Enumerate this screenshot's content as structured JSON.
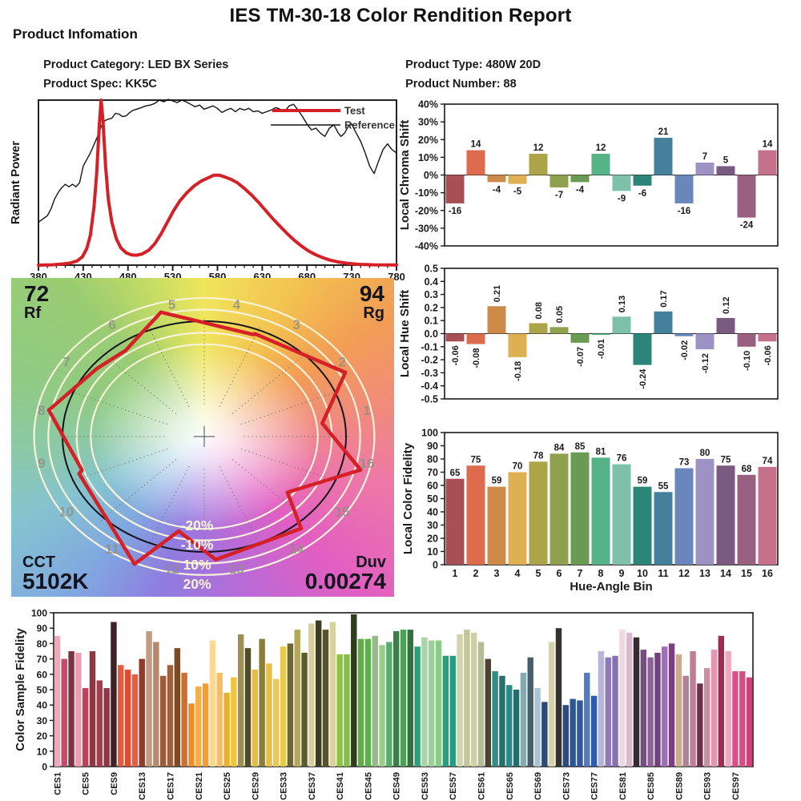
{
  "report": {
    "title": "IES TM-30-18 Color Rendition Report",
    "section_heading": "Product Infomation",
    "fields": {
      "category_label": "Product Category:",
      "category": "LED BX Series",
      "type_label": "Product Type:",
      "type": "480W 20D",
      "spec_label": "Product Spec:",
      "spec": "KK5C",
      "number_label": "Product Number:",
      "number": "88"
    }
  },
  "cvg": {
    "rf_value": "72",
    "rf_label": "Rf",
    "rg_value": "94",
    "rg_label": "Rg",
    "cct_label": "CCT",
    "cct_value": "5102K",
    "duv_label": "Duv",
    "duv_value": "0.00274",
    "ring_labels": [
      "-20%",
      "-10%",
      "10%",
      "20%"
    ],
    "bin_count": 16
  },
  "colors": {
    "test": "#d42026",
    "reference": "#141414",
    "frame": "#1a1a1a",
    "ring_white": "#f8f2d8",
    "bin_palette": [
      "#a84f56",
      "#dd6b4e",
      "#cd8949",
      "#ddb054",
      "#aba449",
      "#90a14d",
      "#6a9b53",
      "#56b287",
      "#7fc0ab",
      "#2b8579",
      "#45809a",
      "#6b86bb",
      "#9d92c4",
      "#7b5a81",
      "#985f80",
      "#c5718c"
    ],
    "ces_palette": [
      "#efa9b8",
      "#c64a6c",
      "#7c3440",
      "#eb9cae",
      "#c04059",
      "#8a3a44",
      "#a83c4c",
      "#933642",
      "#3d2327",
      "#e65a40",
      "#df4a30",
      "#e85c42",
      "#8f3c2e",
      "#c29a80",
      "#b8886c",
      "#9d5c38",
      "#a25f36",
      "#7c4a26",
      "#ca7030",
      "#f08c28",
      "#f6ae48",
      "#f49e30",
      "#fbd894",
      "#f7bd60",
      "#edb02a",
      "#f0c53c",
      "#9e9050",
      "#514c28",
      "#e9bc3e",
      "#8a7e3a",
      "#e7bf48",
      "#ecc757",
      "#e9ca4c",
      "#6c672f",
      "#b4a757",
      "#5d5b2c",
      "#d8cf9c",
      "#3c3c22",
      "#565426",
      "#dad29e",
      "#8ec33c",
      "#7fc04a",
      "#2f3d1f",
      "#63ab46",
      "#5fb04c",
      "#96ba87",
      "#9ccc8c",
      "#58ad6c",
      "#3c7e4a",
      "#4da056",
      "#35713f",
      "#2f9e78",
      "#a6d6a4",
      "#98d096",
      "#8acb8b",
      "#2b9c7c",
      "#279a82",
      "#d2d3a8",
      "#c2c698",
      "#ccd0a6",
      "#b2bc96",
      "#4c4232",
      "#2f8f85",
      "#27706a",
      "#2c8a88",
      "#1e6f70",
      "#87a9b2",
      "#475f6b",
      "#a8c3d6",
      "#2c4a74",
      "#d6d1a8",
      "#34322b",
      "#2b4a82",
      "#2f5596",
      "#32589e",
      "#567abc",
      "#2f5caa",
      "#b6b4d8",
      "#8d7ab8",
      "#8871b0",
      "#eed9df",
      "#d9b9cd",
      "#352b30",
      "#754f80",
      "#8f5f9e",
      "#71427c",
      "#9d6fb6",
      "#7e3c84",
      "#c9ac90",
      "#ae8292",
      "#bf7e94",
      "#703048",
      "#cb8da2",
      "#e596ae",
      "#a02c54",
      "#efa8bc",
      "#da5088",
      "#d84e84",
      "#d0407a"
    ]
  },
  "chart_data": [
    {
      "type": "line",
      "name": "spectral-power-distribution",
      "ylabel": "Radiant Power",
      "x_range": [
        380,
        780
      ],
      "x_ticks": [
        380,
        430,
        480,
        530,
        580,
        630,
        680,
        730,
        780
      ],
      "series": [
        {
          "name": "Test",
          "color": "#d42026",
          "width": 4,
          "points": [
            [
              380,
              0
            ],
            [
              395,
              0.002
            ],
            [
              405,
              0.006
            ],
            [
              415,
              0.012
            ],
            [
              423,
              0.025
            ],
            [
              429,
              0.05
            ],
            [
              434,
              0.1
            ],
            [
              438,
              0.18
            ],
            [
              442,
              0.35
            ],
            [
              445,
              0.55
            ],
            [
              448,
              0.85
            ],
            [
              450,
              1.0
            ],
            [
              452,
              0.88
            ],
            [
              455,
              0.6
            ],
            [
              458,
              0.4
            ],
            [
              462,
              0.26
            ],
            [
              467,
              0.16
            ],
            [
              472,
              0.105
            ],
            [
              478,
              0.075
            ],
            [
              484,
              0.062
            ],
            [
              490,
              0.06
            ],
            [
              496,
              0.068
            ],
            [
              503,
              0.09
            ],
            [
              510,
              0.13
            ],
            [
              517,
              0.19
            ],
            [
              524,
              0.26
            ],
            [
              531,
              0.33
            ],
            [
              538,
              0.39
            ],
            [
              546,
              0.44
            ],
            [
              554,
              0.48
            ],
            [
              562,
              0.51
            ],
            [
              570,
              0.53
            ],
            [
              576,
              0.545
            ],
            [
              582,
              0.545
            ],
            [
              588,
              0.535
            ],
            [
              595,
              0.52
            ],
            [
              602,
              0.5
            ],
            [
              610,
              0.465
            ],
            [
              618,
              0.425
            ],
            [
              626,
              0.38
            ],
            [
              634,
              0.33
            ],
            [
              642,
              0.28
            ],
            [
              650,
              0.235
            ],
            [
              658,
              0.19
            ],
            [
              666,
              0.15
            ],
            [
              674,
              0.115
            ],
            [
              682,
              0.085
            ],
            [
              690,
              0.062
            ],
            [
              698,
              0.044
            ],
            [
              706,
              0.03
            ],
            [
              715,
              0.019
            ],
            [
              725,
              0.011
            ],
            [
              738,
              0.005
            ],
            [
              755,
              0.002
            ],
            [
              780,
              0.001
            ]
          ]
        },
        {
          "name": "Reference",
          "color": "#141414",
          "width": 1.4,
          "points": [
            [
              380,
              0.26
            ],
            [
              385,
              0.28
            ],
            [
              390,
              0.3
            ],
            [
              394,
              0.34
            ],
            [
              398,
              0.4
            ],
            [
              402,
              0.44
            ],
            [
              406,
              0.47
            ],
            [
              410,
              0.49
            ],
            [
              414,
              0.475
            ],
            [
              418,
              0.49
            ],
            [
              422,
              0.475
            ],
            [
              426,
              0.5
            ],
            [
              430,
              0.6
            ],
            [
              434,
              0.64
            ],
            [
              438,
              0.68
            ],
            [
              442,
              0.73
            ],
            [
              446,
              0.78
            ],
            [
              450,
              0.84
            ],
            [
              454,
              0.875
            ],
            [
              458,
              0.885
            ],
            [
              462,
              0.89
            ],
            [
              466,
              0.92
            ],
            [
              470,
              0.915
            ],
            [
              474,
              0.9
            ],
            [
              478,
              0.905
            ],
            [
              482,
              0.925
            ],
            [
              486,
              0.94
            ],
            [
              490,
              0.945
            ],
            [
              495,
              0.955
            ],
            [
              500,
              0.965
            ],
            [
              505,
              0.97
            ],
            [
              510,
              0.98
            ],
            [
              515,
              1.0
            ],
            [
              520,
              0.99
            ],
            [
              525,
              1.005
            ],
            [
              530,
              0.995
            ],
            [
              535,
              0.985
            ],
            [
              540,
              1.0
            ],
            [
              545,
              0.99
            ],
            [
              550,
              0.975
            ],
            [
              555,
              0.96
            ],
            [
              560,
              0.97
            ],
            [
              565,
              0.945
            ],
            [
              570,
              0.955
            ],
            [
              575,
              0.965
            ],
            [
              580,
              0.95
            ],
            [
              585,
              0.925
            ],
            [
              590,
              0.94
            ],
            [
              595,
              0.95
            ],
            [
              600,
              0.93
            ],
            [
              605,
              0.95
            ],
            [
              610,
              0.94
            ],
            [
              615,
              0.95
            ],
            [
              620,
              0.93
            ],
            [
              625,
              0.935
            ],
            [
              630,
              0.92
            ],
            [
              635,
              0.93
            ],
            [
              640,
              0.94
            ],
            [
              645,
              0.955
            ],
            [
              650,
              0.945
            ],
            [
              655,
              0.93
            ],
            [
              660,
              0.965
            ],
            [
              665,
              0.975
            ],
            [
              670,
              0.94
            ],
            [
              675,
              0.9
            ],
            [
              680,
              0.855
            ],
            [
              685,
              0.82
            ],
            [
              690,
              0.83
            ],
            [
              695,
              0.8
            ],
            [
              700,
              0.78
            ],
            [
              705,
              0.83
            ],
            [
              710,
              0.85
            ],
            [
              715,
              0.8
            ],
            [
              718,
              0.78
            ],
            [
              722,
              0.8
            ],
            [
              726,
              0.84
            ],
            [
              730,
              0.855
            ],
            [
              735,
              0.8
            ],
            [
              740,
              0.75
            ],
            [
              745,
              0.68
            ],
            [
              750,
              0.6
            ],
            [
              755,
              0.555
            ],
            [
              760,
              0.63
            ],
            [
              765,
              0.7
            ],
            [
              770,
              0.735
            ],
            [
              775,
              0.7
            ],
            [
              780,
              0.68
            ]
          ]
        }
      ]
    },
    {
      "type": "bar",
      "name": "local-chroma-shift",
      "ylabel": "Local Chroma Shift",
      "ylim": [
        -40,
        40
      ],
      "tick_step": 10,
      "tick_suffix": "%",
      "categories": [
        "1",
        "2",
        "3",
        "4",
        "5",
        "6",
        "7",
        "8",
        "9",
        "10",
        "11",
        "12",
        "13",
        "14",
        "15",
        "16"
      ],
      "values": [
        -16,
        14,
        -4,
        -5,
        12,
        -7,
        -4,
        12,
        -9,
        -6,
        21,
        -16,
        7,
        5,
        -24,
        14
      ]
    },
    {
      "type": "bar",
      "name": "local-hue-shift",
      "ylabel": "Local Hue Shift",
      "ylim": [
        -0.5,
        0.5
      ],
      "tick_step": 0.1,
      "categories": [
        "1",
        "2",
        "3",
        "4",
        "5",
        "6",
        "7",
        "8",
        "9",
        "10",
        "11",
        "12",
        "13",
        "14",
        "15",
        "16"
      ],
      "values": [
        -0.06,
        -0.08,
        0.21,
        -0.18,
        0.08,
        0.05,
        -0.07,
        -0.01,
        0.13,
        -0.24,
        0.17,
        -0.02,
        -0.12,
        0.12,
        -0.1,
        -0.06
      ],
      "labels": [
        "-0.06",
        "-0.08",
        "0.21",
        "-0.18",
        "0.08",
        "0.05",
        "-0.07",
        "-0.01",
        "0.13",
        "-0.24",
        "0.17",
        "-0.02",
        "-0.12",
        "0.12",
        "-0.10",
        "-0.06"
      ],
      "label_rotation": 90
    },
    {
      "type": "bar",
      "name": "local-color-fidelity",
      "ylabel": "Local Color Fidelity",
      "xlabel": "Hue-Angle Bin",
      "ylim": [
        0,
        100
      ],
      "tick_step": 10,
      "categories": [
        "1",
        "2",
        "3",
        "4",
        "5",
        "6",
        "7",
        "8",
        "9",
        "10",
        "11",
        "12",
        "13",
        "14",
        "15",
        "16"
      ],
      "values": [
        65,
        75,
        59,
        70,
        78,
        84,
        85,
        81,
        76,
        59,
        55,
        73,
        80,
        75,
        68,
        74
      ]
    },
    {
      "type": "bar",
      "name": "color-sample-fidelity",
      "ylabel": "Color Sample Fidelity",
      "ylim": [
        0,
        100
      ],
      "tick_step": 10,
      "label_every": 4,
      "tick_labels": [
        "CES1",
        "CES5",
        "CES9",
        "CES13",
        "CES17",
        "CES21",
        "CES25",
        "CES29",
        "CES33",
        "CES37",
        "CES41",
        "CES45",
        "CES49",
        "CES53",
        "CES57",
        "CES61",
        "CES65",
        "CES69",
        "CES73",
        "CES77",
        "CES81",
        "CES85",
        "CES89",
        "CES93",
        "CES97"
      ],
      "values": [
        85,
        70,
        75,
        74,
        51,
        75,
        56,
        51,
        94,
        66,
        63,
        60,
        70,
        88,
        81,
        59,
        66,
        77,
        61,
        41,
        52,
        54,
        82,
        61,
        48,
        58,
        86,
        77,
        63,
        83,
        67,
        57,
        78,
        80,
        89,
        74,
        93,
        95,
        89,
        94,
        73,
        73,
        99,
        83,
        83,
        85,
        79,
        81,
        88,
        89,
        89,
        78,
        84,
        82,
        82,
        72,
        72,
        86,
        89,
        87,
        81,
        70,
        62,
        59,
        53,
        50,
        61,
        71,
        51,
        42,
        81,
        90,
        40,
        44,
        43,
        61,
        46,
        75,
        71,
        72,
        89,
        87,
        84,
        76,
        71,
        74,
        78,
        80,
        73,
        59,
        75,
        54,
        64,
        76,
        85,
        75,
        62,
        62,
        58
      ]
    }
  ]
}
